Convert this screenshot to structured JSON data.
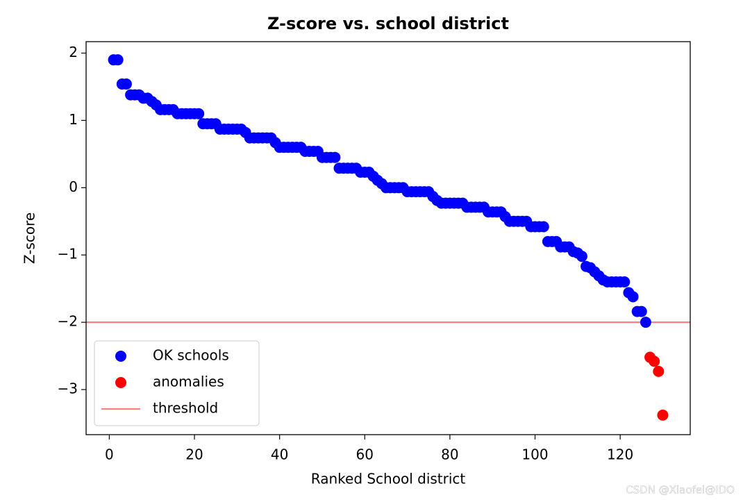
{
  "chart_data": {
    "type": "scatter",
    "title": "Z-score vs. school district",
    "x_label": "Ranked School district",
    "y_label": "Z-score",
    "xlim": [
      -5.45,
      136.45
    ],
    "ylim": [
      -3.67,
      2.17
    ],
    "xticks": [
      0,
      20,
      40,
      60,
      80,
      100,
      120
    ],
    "yticks": [
      {
        "value": -3,
        "label": "−3"
      },
      {
        "value": -2,
        "label": "−2"
      },
      {
        "value": -1,
        "label": "−1"
      },
      0,
      1,
      2
    ],
    "legend": "lower left",
    "series": [
      {
        "name": "OK schools",
        "color": "#0000ff",
        "x": [
          1,
          2,
          3,
          4,
          5,
          6,
          7,
          8,
          9,
          10,
          11,
          12,
          13,
          14,
          15,
          16,
          17,
          18,
          19,
          20,
          21,
          22,
          23,
          24,
          25,
          26,
          27,
          28,
          29,
          30,
          31,
          32,
          33,
          34,
          35,
          36,
          37,
          38,
          39,
          40,
          41,
          42,
          43,
          44,
          45,
          46,
          47,
          48,
          49,
          50,
          51,
          52,
          53,
          54,
          55,
          56,
          57,
          58,
          59,
          60,
          61,
          62,
          63,
          64,
          65,
          66,
          67,
          68,
          69,
          70,
          71,
          72,
          73,
          74,
          75,
          76,
          77,
          78,
          79,
          80,
          81,
          82,
          83,
          84,
          85,
          86,
          87,
          88,
          89,
          90,
          91,
          92,
          93,
          94,
          95,
          96,
          97,
          98,
          99,
          100,
          101,
          102,
          103,
          104,
          105,
          106,
          107,
          108,
          109,
          110,
          111,
          112,
          113,
          114,
          115,
          116,
          117,
          118,
          119,
          120,
          121,
          122,
          123,
          124,
          125,
          126
        ],
        "values": [
          1.9,
          1.9,
          1.54,
          1.54,
          1.38,
          1.38,
          1.38,
          1.33,
          1.33,
          1.28,
          1.23,
          1.16,
          1.16,
          1.16,
          1.16,
          1.1,
          1.1,
          1.1,
          1.1,
          1.1,
          1.1,
          0.95,
          0.95,
          0.95,
          0.95,
          0.87,
          0.87,
          0.87,
          0.87,
          0.87,
          0.87,
          0.82,
          0.74,
          0.74,
          0.74,
          0.74,
          0.74,
          0.74,
          0.67,
          0.6,
          0.6,
          0.6,
          0.6,
          0.6,
          0.6,
          0.54,
          0.54,
          0.54,
          0.54,
          0.45,
          0.45,
          0.45,
          0.45,
          0.29,
          0.29,
          0.29,
          0.29,
          0.29,
          0.23,
          0.23,
          0.23,
          0.17,
          0.11,
          0.06,
          0,
          0,
          0,
          0,
          0,
          -0.06,
          -0.06,
          -0.06,
          -0.06,
          -0.06,
          -0.06,
          -0.13,
          -0.19,
          -0.23,
          -0.23,
          -0.23,
          -0.23,
          -0.23,
          -0.23,
          -0.29,
          -0.29,
          -0.29,
          -0.29,
          -0.29,
          -0.36,
          -0.36,
          -0.36,
          -0.36,
          -0.43,
          -0.5,
          -0.5,
          -0.5,
          -0.5,
          -0.5,
          -0.58,
          -0.58,
          -0.58,
          -0.58,
          -0.8,
          -0.8,
          -0.8,
          -0.88,
          -0.88,
          -0.88,
          -0.95,
          -0.97,
          -1.02,
          -1.17,
          -1.19,
          -1.25,
          -1.31,
          -1.37,
          -1.4,
          -1.4,
          -1.4,
          -1.4,
          -1.4,
          -1.56,
          -1.62,
          -1.84,
          -1.84,
          -2.0
        ]
      },
      {
        "name": "anomalies",
        "color": "#ff0000",
        "x": [
          127,
          128,
          129,
          130
        ],
        "values": [
          -2.52,
          -2.58,
          -2.73,
          -3.38
        ]
      }
    ],
    "threshold": {
      "name": "threshold",
      "value": -2,
      "color": "#ff7f7f"
    },
    "watermark": "CSDN @Xiaofei@IDO"
  }
}
